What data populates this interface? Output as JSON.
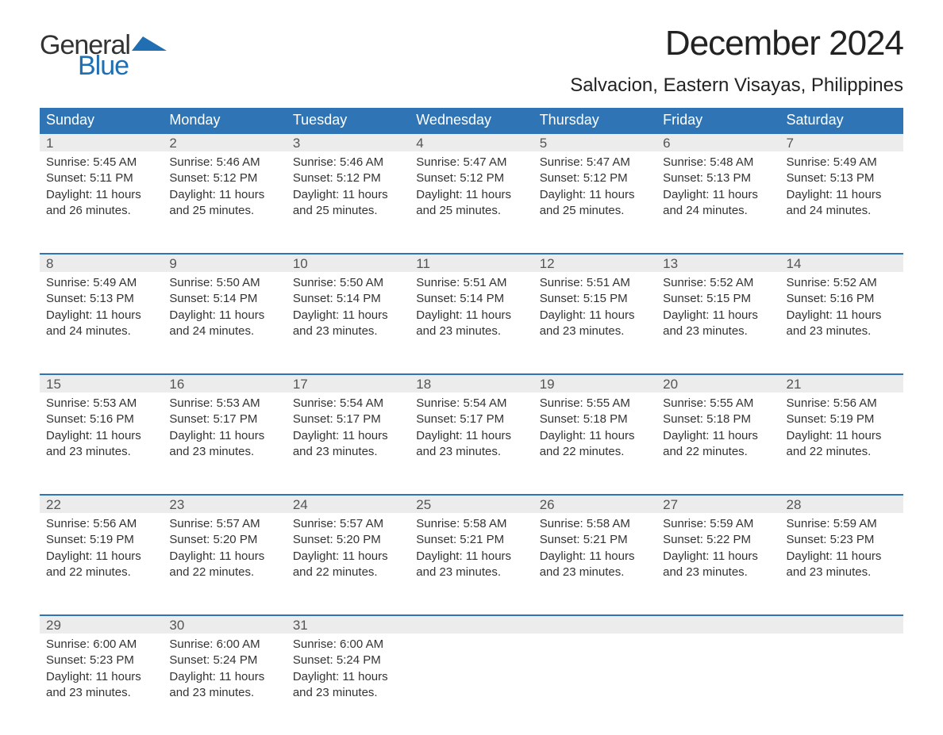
{
  "logo": {
    "word1": "General",
    "word2": "Blue",
    "color1": "#333333",
    "color2": "#1f6fb2"
  },
  "title": "December 2024",
  "location": "Salvacion, Eastern Visayas, Philippines",
  "colors": {
    "header_bg": "#2f75b5",
    "header_text": "#ffffff",
    "daynum_bg": "#ececec",
    "daynum_border": "#2f75b5",
    "body_text": "#333333",
    "page_bg": "#ffffff"
  },
  "fonts": {
    "title_size_pt": 33,
    "location_size_pt": 18,
    "dayheader_size_pt": 14,
    "body_size_pt": 11
  },
  "day_headers": [
    "Sunday",
    "Monday",
    "Tuesday",
    "Wednesday",
    "Thursday",
    "Friday",
    "Saturday"
  ],
  "weeks": [
    [
      {
        "n": "1",
        "sr": "Sunrise: 5:45 AM",
        "ss": "Sunset: 5:11 PM",
        "d1": "Daylight: 11 hours",
        "d2": "and 26 minutes."
      },
      {
        "n": "2",
        "sr": "Sunrise: 5:46 AM",
        "ss": "Sunset: 5:12 PM",
        "d1": "Daylight: 11 hours",
        "d2": "and 25 minutes."
      },
      {
        "n": "3",
        "sr": "Sunrise: 5:46 AM",
        "ss": "Sunset: 5:12 PM",
        "d1": "Daylight: 11 hours",
        "d2": "and 25 minutes."
      },
      {
        "n": "4",
        "sr": "Sunrise: 5:47 AM",
        "ss": "Sunset: 5:12 PM",
        "d1": "Daylight: 11 hours",
        "d2": "and 25 minutes."
      },
      {
        "n": "5",
        "sr": "Sunrise: 5:47 AM",
        "ss": "Sunset: 5:12 PM",
        "d1": "Daylight: 11 hours",
        "d2": "and 25 minutes."
      },
      {
        "n": "6",
        "sr": "Sunrise: 5:48 AM",
        "ss": "Sunset: 5:13 PM",
        "d1": "Daylight: 11 hours",
        "d2": "and 24 minutes."
      },
      {
        "n": "7",
        "sr": "Sunrise: 5:49 AM",
        "ss": "Sunset: 5:13 PM",
        "d1": "Daylight: 11 hours",
        "d2": "and 24 minutes."
      }
    ],
    [
      {
        "n": "8",
        "sr": "Sunrise: 5:49 AM",
        "ss": "Sunset: 5:13 PM",
        "d1": "Daylight: 11 hours",
        "d2": "and 24 minutes."
      },
      {
        "n": "9",
        "sr": "Sunrise: 5:50 AM",
        "ss": "Sunset: 5:14 PM",
        "d1": "Daylight: 11 hours",
        "d2": "and 24 minutes."
      },
      {
        "n": "10",
        "sr": "Sunrise: 5:50 AM",
        "ss": "Sunset: 5:14 PM",
        "d1": "Daylight: 11 hours",
        "d2": "and 23 minutes."
      },
      {
        "n": "11",
        "sr": "Sunrise: 5:51 AM",
        "ss": "Sunset: 5:14 PM",
        "d1": "Daylight: 11 hours",
        "d2": "and 23 minutes."
      },
      {
        "n": "12",
        "sr": "Sunrise: 5:51 AM",
        "ss": "Sunset: 5:15 PM",
        "d1": "Daylight: 11 hours",
        "d2": "and 23 minutes."
      },
      {
        "n": "13",
        "sr": "Sunrise: 5:52 AM",
        "ss": "Sunset: 5:15 PM",
        "d1": "Daylight: 11 hours",
        "d2": "and 23 minutes."
      },
      {
        "n": "14",
        "sr": "Sunrise: 5:52 AM",
        "ss": "Sunset: 5:16 PM",
        "d1": "Daylight: 11 hours",
        "d2": "and 23 minutes."
      }
    ],
    [
      {
        "n": "15",
        "sr": "Sunrise: 5:53 AM",
        "ss": "Sunset: 5:16 PM",
        "d1": "Daylight: 11 hours",
        "d2": "and 23 minutes."
      },
      {
        "n": "16",
        "sr": "Sunrise: 5:53 AM",
        "ss": "Sunset: 5:17 PM",
        "d1": "Daylight: 11 hours",
        "d2": "and 23 minutes."
      },
      {
        "n": "17",
        "sr": "Sunrise: 5:54 AM",
        "ss": "Sunset: 5:17 PM",
        "d1": "Daylight: 11 hours",
        "d2": "and 23 minutes."
      },
      {
        "n": "18",
        "sr": "Sunrise: 5:54 AM",
        "ss": "Sunset: 5:17 PM",
        "d1": "Daylight: 11 hours",
        "d2": "and 23 minutes."
      },
      {
        "n": "19",
        "sr": "Sunrise: 5:55 AM",
        "ss": "Sunset: 5:18 PM",
        "d1": "Daylight: 11 hours",
        "d2": "and 22 minutes."
      },
      {
        "n": "20",
        "sr": "Sunrise: 5:55 AM",
        "ss": "Sunset: 5:18 PM",
        "d1": "Daylight: 11 hours",
        "d2": "and 22 minutes."
      },
      {
        "n": "21",
        "sr": "Sunrise: 5:56 AM",
        "ss": "Sunset: 5:19 PM",
        "d1": "Daylight: 11 hours",
        "d2": "and 22 minutes."
      }
    ],
    [
      {
        "n": "22",
        "sr": "Sunrise: 5:56 AM",
        "ss": "Sunset: 5:19 PM",
        "d1": "Daylight: 11 hours",
        "d2": "and 22 minutes."
      },
      {
        "n": "23",
        "sr": "Sunrise: 5:57 AM",
        "ss": "Sunset: 5:20 PM",
        "d1": "Daylight: 11 hours",
        "d2": "and 22 minutes."
      },
      {
        "n": "24",
        "sr": "Sunrise: 5:57 AM",
        "ss": "Sunset: 5:20 PM",
        "d1": "Daylight: 11 hours",
        "d2": "and 22 minutes."
      },
      {
        "n": "25",
        "sr": "Sunrise: 5:58 AM",
        "ss": "Sunset: 5:21 PM",
        "d1": "Daylight: 11 hours",
        "d2": "and 23 minutes."
      },
      {
        "n": "26",
        "sr": "Sunrise: 5:58 AM",
        "ss": "Sunset: 5:21 PM",
        "d1": "Daylight: 11 hours",
        "d2": "and 23 minutes."
      },
      {
        "n": "27",
        "sr": "Sunrise: 5:59 AM",
        "ss": "Sunset: 5:22 PM",
        "d1": "Daylight: 11 hours",
        "d2": "and 23 minutes."
      },
      {
        "n": "28",
        "sr": "Sunrise: 5:59 AM",
        "ss": "Sunset: 5:23 PM",
        "d1": "Daylight: 11 hours",
        "d2": "and 23 minutes."
      }
    ],
    [
      {
        "n": "29",
        "sr": "Sunrise: 6:00 AM",
        "ss": "Sunset: 5:23 PM",
        "d1": "Daylight: 11 hours",
        "d2": "and 23 minutes."
      },
      {
        "n": "30",
        "sr": "Sunrise: 6:00 AM",
        "ss": "Sunset: 5:24 PM",
        "d1": "Daylight: 11 hours",
        "d2": "and 23 minutes."
      },
      {
        "n": "31",
        "sr": "Sunrise: 6:00 AM",
        "ss": "Sunset: 5:24 PM",
        "d1": "Daylight: 11 hours",
        "d2": "and 23 minutes."
      },
      null,
      null,
      null,
      null
    ]
  ]
}
